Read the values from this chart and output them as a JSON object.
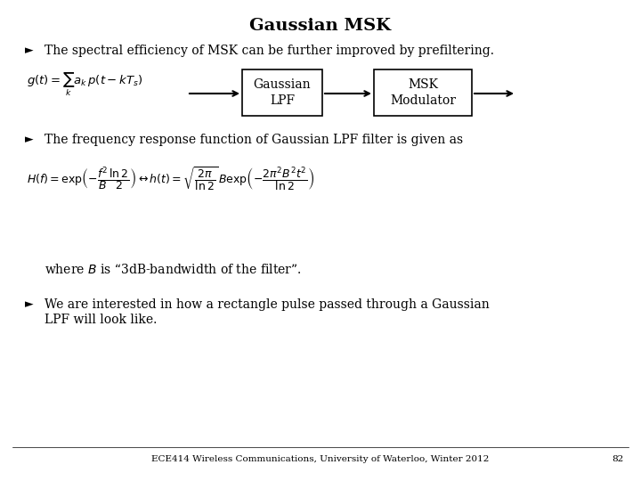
{
  "title": "Gaussian MSK",
  "title_fontsize": 14,
  "title_fontweight": "bold",
  "bg_color": "#ffffff",
  "text_color": "#000000",
  "bullet1": "The spectral efficiency of MSK can be further improved by prefiltering.",
  "bullet2": "The frequency response function of Gaussian LPF filter is given as",
  "bullet3_line1": "We are interested in how a rectangle pulse passed through a Gaussian",
  "bullet3_line2": "LPF will look like.",
  "where_text": "where $B$ is “3dB-bandwidth of the filter”.",
  "box1_label": "Gaussian\nLPF",
  "box2_label": "MSK\nModulator",
  "formula_g": "$g(t)=\\sum_k a_k\\,p(t-kT_s)$",
  "formula_H": "$H(f)=\\exp\\!\\left(-\\dfrac{f^2}{B}\\dfrac{\\ln 2}{2}\\right) \\leftrightarrow h(t)=\\sqrt{\\dfrac{2\\pi}{\\ln 2}}\\,B\\exp\\!\\left(-\\dfrac{2\\pi^2 B^2 t^2}{\\ln 2}\\right)$",
  "footer": "ECE414 Wireless Communications, University of Waterloo, Winter 2012",
  "page_num": "82",
  "body_fontsize": 10,
  "formula_fontsize": 10,
  "footer_fontsize": 7.5,
  "bullet_char": "Ø"
}
